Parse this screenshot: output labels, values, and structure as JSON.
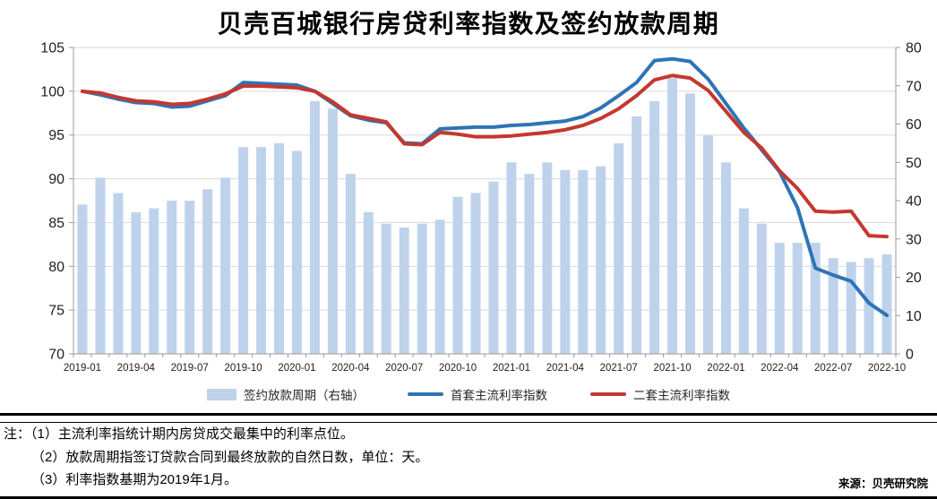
{
  "title": "贝壳百城银行房贷利率指数及签约放款周期",
  "source": "来源：贝壳研究院",
  "notes": {
    "line1": "注：（1）主流利率指统计期内房贷成交最集中的利率点位。",
    "line2": "（2）放款周期指签订贷款合同到最终放款的自然日数，单位：天。",
    "line3": "（3）利率指数基期为2019年1月。"
  },
  "colors": {
    "bar_fill": "#BED3EB",
    "first_home_line": "#2E74B6",
    "second_home_line": "#C4382F",
    "gridline": "#D9D9D9",
    "axis": "#9B9B9B",
    "tick_text": "#1F1F1F"
  },
  "chart_data": {
    "type": "bar+line combo",
    "x": [
      "2019-01",
      "2019-02",
      "2019-03",
      "2019-04",
      "2019-05",
      "2019-06",
      "2019-07",
      "2019-08",
      "2019-09",
      "2019-10",
      "2019-11",
      "2019-12",
      "2020-01",
      "2020-02",
      "2020-03",
      "2020-04",
      "2020-05",
      "2020-06",
      "2020-07",
      "2020-08",
      "2020-09",
      "2020-10",
      "2020-11",
      "2020-12",
      "2021-01",
      "2021-02",
      "2021-03",
      "2021-04",
      "2021-05",
      "2021-06",
      "2021-07",
      "2021-08",
      "2021-09",
      "2021-10",
      "2021-11",
      "2021-12",
      "2022-01",
      "2022-02",
      "2022-03",
      "2022-04",
      "2022-05",
      "2022-06",
      "2022-07",
      "2022-08",
      "2022-09",
      "2022-10"
    ],
    "x_tick_step": 3,
    "left_axis": {
      "min": 70,
      "max": 105,
      "step": 5
    },
    "right_axis": {
      "min": 0,
      "max": 80,
      "step": 10
    },
    "grid": "horizontal only",
    "legend_position": "bottom",
    "series": [
      {
        "name": "签约放款周期（右轴）",
        "type": "bar",
        "axis": "right",
        "color": "#BED3EB",
        "values": [
          39,
          46,
          42,
          37,
          38,
          40,
          40,
          43,
          46,
          54,
          54,
          55,
          53,
          66,
          64,
          47,
          37,
          34,
          33,
          34,
          35,
          41,
          42,
          45,
          50,
          47,
          50,
          48,
          48,
          49,
          55,
          62,
          66,
          72,
          68,
          57,
          50,
          38,
          34,
          29,
          29,
          29,
          25,
          24,
          25,
          26
        ]
      },
      {
        "name": "首套主流利率指数",
        "type": "line",
        "axis": "left",
        "color": "#2E74B6",
        "values": [
          100.0,
          99.6,
          99.1,
          98.7,
          98.6,
          98.2,
          98.3,
          98.9,
          99.5,
          101.0,
          100.9,
          100.8,
          100.7,
          100.0,
          98.6,
          97.2,
          96.7,
          96.4,
          94.1,
          94.0,
          95.7,
          95.8,
          95.9,
          95.9,
          96.1,
          96.2,
          96.4,
          96.6,
          97.1,
          98.1,
          99.5,
          101.0,
          103.5,
          103.7,
          103.4,
          101.4,
          98.6,
          95.8,
          93.3,
          90.8,
          86.7,
          79.8,
          79.0,
          78.3,
          75.8,
          74.4
        ]
      },
      {
        "name": "二套主流利率指数",
        "type": "line",
        "axis": "left",
        "color": "#C4382F",
        "values": [
          100.0,
          99.8,
          99.3,
          98.9,
          98.8,
          98.5,
          98.6,
          99.1,
          99.7,
          100.6,
          100.6,
          100.5,
          100.4,
          100.0,
          98.8,
          97.3,
          96.9,
          96.5,
          94.0,
          93.9,
          95.3,
          95.1,
          94.8,
          94.8,
          94.9,
          95.1,
          95.3,
          95.6,
          96.1,
          96.9,
          98.0,
          99.5,
          101.3,
          101.8,
          101.5,
          100.1,
          97.7,
          95.3,
          93.5,
          90.9,
          88.9,
          86.3,
          86.2,
          86.3,
          83.5,
          83.4
        ]
      }
    ]
  }
}
